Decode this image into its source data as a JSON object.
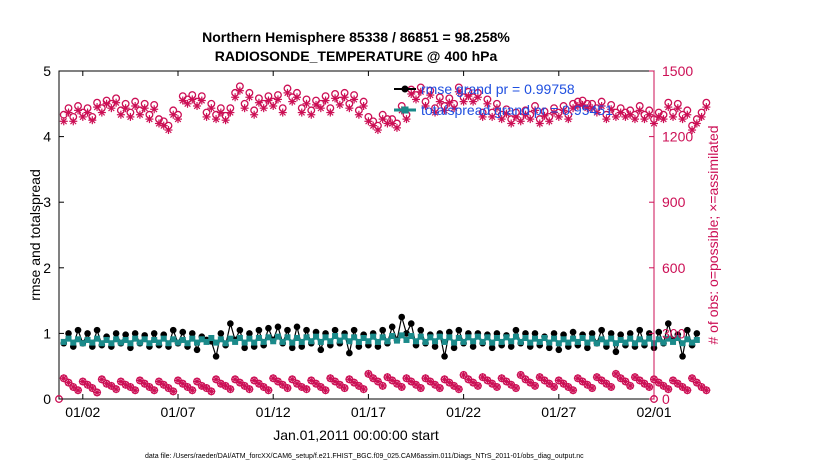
{
  "colors": {
    "rmse": "#000000",
    "spread": "#1a8a8a",
    "obs": "#cc0f55",
    "legend_text": "#1f4fe0",
    "axis": "#000000"
  },
  "chart_data": {
    "type": "line",
    "title_line1": "Northern Hemisphere 85338 / 86851 = 98.258%",
    "title_line2": "RADIOSONDE_TEMPERATURE @ 400 hPa",
    "xlabel": "Jan.01,2011 00:00:00 start",
    "ylabel_left": "rmse and totalspread",
    "ylabel_right": "# of obs: o=possible; ×=assimilated",
    "footnote": "data file: /Users/raeder/DAI/ATM_forcXX/CAM6_setup/f.e21.FHIST_BGC.f09_025.CAM6assim.011/Diags_NTrS_2011-01/obs_diag_output.nc",
    "xlim": [
      0.5,
      31.75
    ],
    "ylim_left": [
      0,
      5
    ],
    "ylim_right": [
      0,
      1500
    ],
    "x_ticks": [
      1.75,
      6.75,
      11.75,
      16.75,
      21.75,
      26.75,
      31.75
    ],
    "x_tick_labels": [
      "01/02",
      "01/07",
      "01/12",
      "01/17",
      "01/22",
      "01/27",
      "02/01"
    ],
    "y_ticks_left": [
      0,
      1,
      2,
      3,
      4,
      5
    ],
    "y_tick_labels_left": [
      "0",
      "1",
      "2",
      "3",
      "4",
      "5"
    ],
    "y_ticks_right": [
      0,
      300,
      600,
      900,
      1200,
      1500
    ],
    "y_tick_labels_right": [
      "0",
      "300",
      "600",
      "900",
      "1200",
      "1500"
    ],
    "legend": [
      {
        "label": "rmse grand pr = 0.99758",
        "series": "rmse"
      },
      {
        "label": "totalspread grand pr = 0.95451",
        "series": "totalspread"
      }
    ],
    "x_start": 0.75,
    "x_step": 0.25,
    "series": [
      {
        "name": "rmse",
        "values": [
          0.85,
          1.0,
          0.8,
          1.05,
          0.85,
          1.0,
          0.8,
          1.05,
          0.82,
          0.95,
          0.8,
          1.0,
          0.85,
          0.98,
          0.78,
          1.0,
          0.85,
          0.97,
          0.8,
          1.0,
          0.82,
          0.98,
          0.8,
          1.05,
          0.85,
          1.02,
          0.8,
          1.0,
          0.75,
          0.95,
          0.9,
          0.88,
          0.65,
          1.0,
          0.82,
          1.15,
          0.9,
          1.05,
          0.78,
          1.0,
          0.8,
          1.05,
          0.82,
          1.08,
          0.9,
          1.1,
          0.85,
          1.05,
          0.78,
          1.1,
          0.8,
          1.05,
          0.85,
          1.02,
          0.75,
          1.0,
          0.82,
          1.05,
          0.85,
          1.0,
          0.7,
          1.05,
          0.8,
          0.98,
          0.82,
          1.0,
          0.8,
          1.05,
          0.85,
          1.1,
          0.9,
          1.25,
          1.0,
          1.15,
          0.82,
          1.05,
          0.85,
          0.98,
          0.8,
          1.0,
          0.65,
          1.02,
          0.78,
          1.05,
          0.85,
          1.0,
          0.8,
          1.0,
          0.85,
          0.98,
          0.78,
          1.0,
          0.82,
          0.97,
          0.8,
          1.05,
          0.85,
          1.0,
          0.8,
          1.0,
          0.82,
          0.95,
          0.78,
          1.0,
          0.75,
          0.98,
          0.8,
          1.02,
          0.82,
          0.98,
          0.78,
          1.0,
          0.85,
          1.05,
          0.8,
          1.0,
          0.72,
          0.98,
          0.82,
          1.0,
          0.8,
          1.05,
          0.82,
          1.0,
          0.78,
          1.02,
          0.85,
          1.15,
          0.9,
          0.98,
          0.65,
          1.05,
          0.82,
          1.0
        ],
        "marker": "filled-circle"
      },
      {
        "name": "totalspread",
        "values": [
          0.87,
          0.92,
          0.86,
          0.91,
          0.85,
          0.9,
          0.86,
          0.92,
          0.85,
          0.9,
          0.85,
          0.91,
          0.86,
          0.9,
          0.85,
          0.92,
          0.86,
          0.91,
          0.85,
          0.9,
          0.86,
          0.92,
          0.85,
          0.91,
          0.86,
          0.9,
          0.85,
          0.92,
          0.86,
          0.91,
          0.87,
          0.93,
          0.86,
          0.91,
          0.85,
          0.92,
          0.87,
          0.93,
          0.86,
          0.92,
          0.86,
          0.93,
          0.87,
          0.94,
          0.88,
          0.95,
          0.87,
          0.94,
          0.86,
          0.93,
          0.87,
          0.94,
          0.88,
          0.95,
          0.87,
          0.94,
          0.88,
          0.96,
          0.89,
          0.95,
          0.88,
          0.94,
          0.87,
          0.93,
          0.88,
          0.95,
          0.87,
          0.94,
          0.88,
          0.96,
          0.89,
          0.97,
          0.9,
          0.96,
          0.88,
          0.95,
          0.87,
          0.94,
          0.88,
          0.95,
          0.87,
          0.94,
          0.86,
          0.93,
          0.87,
          0.94,
          0.88,
          0.95,
          0.87,
          0.94,
          0.86,
          0.93,
          0.87,
          0.94,
          0.88,
          0.95,
          0.87,
          0.93,
          0.86,
          0.92,
          0.87,
          0.93,
          0.86,
          0.92,
          0.85,
          0.91,
          0.86,
          0.92,
          0.87,
          0.93,
          0.86,
          0.92,
          0.85,
          0.91,
          0.86,
          0.92,
          0.85,
          0.9,
          0.86,
          0.92,
          0.85,
          0.91,
          0.86,
          0.92,
          0.85,
          0.91,
          0.86,
          0.92,
          0.87,
          0.93,
          0.85,
          0.91,
          0.86,
          0.9
        ],
        "marker": "filled-square"
      },
      {
        "name": "obs_possible",
        "axis": "right",
        "values": [
          1300,
          1330,
          1290,
          1340,
          1310,
          1330,
          1290,
          1355,
          1330,
          1365,
          1350,
          1375,
          1320,
          1350,
          1310,
          1360,
          1320,
          1350,
          1300,
          1345,
          1280,
          1270,
          1250,
          1320,
          1300,
          1385,
          1370,
          1390,
          1360,
          1385,
          1310,
          1350,
          1300,
          1330,
          1295,
          1330,
          1400,
          1430,
          1350,
          1400,
          1320,
          1375,
          1350,
          1385,
          1360,
          1390,
          1330,
          1420,
          1380,
          1400,
          1330,
          1370,
          1320,
          1365,
          1350,
          1385,
          1330,
          1395,
          1365,
          1400,
          1350,
          1390,
          1320,
          1360,
          1290,
          1270,
          1250,
          1300,
          1280,
          1280,
          1260,
          1340,
          1300,
          1415,
          1390,
          1425,
          1360,
          1410,
          1330,
          1380,
          1340,
          1375,
          1350,
          1425,
          1380,
          1405,
          1380,
          1400,
          1310,
          1370,
          1310,
          1350,
          1300,
          1325,
          1280,
          1310,
          1290,
          1320,
          1300,
          1340,
          1280,
          1315,
          1290,
          1330,
          1310,
          1340,
          1300,
          1350,
          1360,
          1365,
          1350,
          1350,
          1330,
          1360,
          1300,
          1345,
          1310,
          1330,
          1310,
          1320,
          1300,
          1340,
          1300,
          1320,
          1280,
          1310,
          1300,
          1355,
          1310,
          1350,
          1300,
          1320,
          1250,
          1280,
          1310,
          1355
        ],
        "marker": "open-circle"
      },
      {
        "name": "obs_assimilated",
        "axis": "right",
        "values": [
          1270,
          1310,
          1270,
          1320,
          1290,
          1310,
          1275,
          1335,
          1310,
          1350,
          1330,
          1355,
          1300,
          1330,
          1290,
          1340,
          1300,
          1330,
          1280,
          1325,
          1260,
          1250,
          1230,
          1300,
          1280,
          1365,
          1350,
          1370,
          1340,
          1365,
          1290,
          1330,
          1280,
          1310,
          1275,
          1310,
          1380,
          1410,
          1330,
          1380,
          1300,
          1355,
          1330,
          1365,
          1340,
          1370,
          1310,
          1400,
          1360,
          1380,
          1310,
          1350,
          1300,
          1345,
          1330,
          1365,
          1310,
          1375,
          1345,
          1380,
          1330,
          1370,
          1300,
          1340,
          1270,
          1250,
          1230,
          1280,
          1260,
          1260,
          1240,
          1320,
          1280,
          1395,
          1370,
          1405,
          1340,
          1390,
          1310,
          1360,
          1320,
          1355,
          1330,
          1405,
          1360,
          1385,
          1360,
          1380,
          1290,
          1350,
          1290,
          1330,
          1280,
          1305,
          1260,
          1290,
          1270,
          1300,
          1280,
          1320,
          1260,
          1295,
          1270,
          1310,
          1290,
          1320,
          1280,
          1330,
          1340,
          1345,
          1330,
          1330,
          1310,
          1340,
          1280,
          1325,
          1290,
          1310,
          1290,
          1300,
          1280,
          1320,
          1280,
          1300,
          1260,
          1290,
          1280,
          1335,
          1290,
          1330,
          1280,
          1300,
          1230,
          1260,
          1290,
          1335
        ],
        "marker": "asterisk"
      },
      {
        "name": "obs_bottom",
        "axis": "right",
        "values": [
          95,
          75,
          55,
          40,
          80,
          65,
          50,
          30,
          90,
          70,
          60,
          45,
          80,
          65,
          55,
          40,
          85,
          70,
          55,
          40,
          80,
          65,
          50,
          35,
          85,
          70,
          55,
          40,
          80,
          60,
          50,
          35,
          90,
          70,
          60,
          45,
          90,
          75,
          60,
          45,
          85,
          70,
          55,
          40,
          95,
          80,
          65,
          50,
          90,
          70,
          55,
          45,
          85,
          70,
          55,
          40,
          95,
          80,
          65,
          50,
          90,
          75,
          60,
          45,
          115,
          95,
          80,
          60,
          100,
          85,
          70,
          55,
          95,
          80,
          65,
          50,
          95,
          80,
          65,
          50,
          90,
          75,
          60,
          45,
          110,
          90,
          75,
          60,
          100,
          85,
          70,
          55,
          95,
          80,
          65,
          50,
          110,
          90,
          75,
          60,
          100,
          85,
          70,
          55,
          85,
          70,
          55,
          40,
          95,
          80,
          65,
          50,
          100,
          85,
          70,
          55,
          115,
          95,
          80,
          60,
          100,
          85,
          70,
          55,
          90,
          75,
          60,
          45,
          85,
          70,
          55,
          40,
          95,
          75,
          55,
          40
        ],
        "marker": "open-circle-asterisk"
      }
    ]
  }
}
